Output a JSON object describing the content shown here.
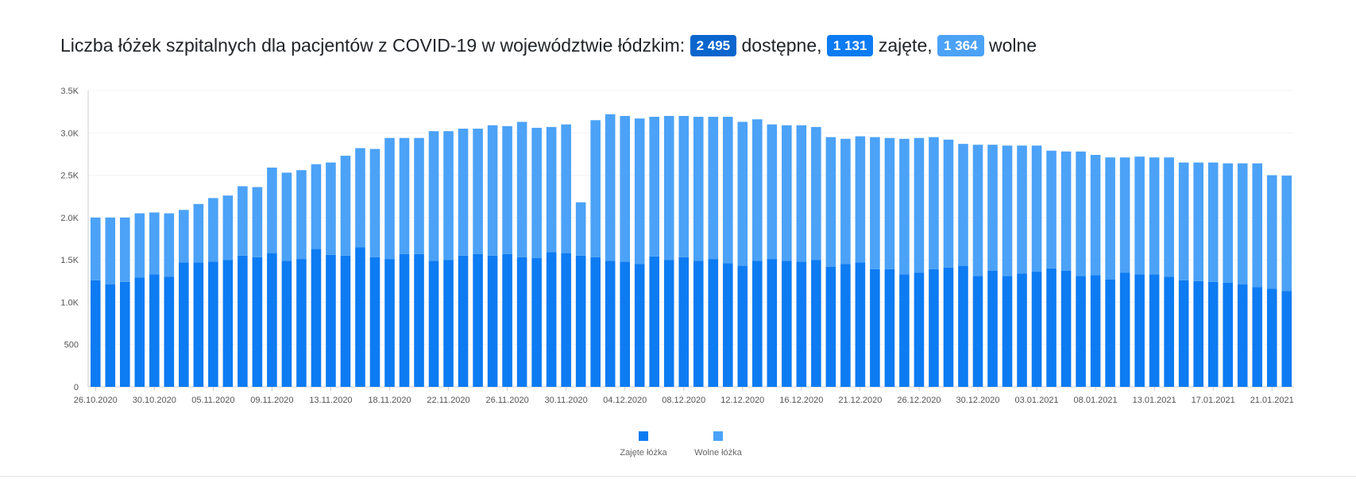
{
  "header": {
    "title_prefix": "Liczba łóżek szpitalnych dla pacjentów z COVID-19 w województwie łódzkim:",
    "available_value": "2 495",
    "available_label": "dostępne,",
    "occupied_value": "1 131",
    "occupied_label": "zajęte,",
    "free_value": "1 364",
    "free_label": "wolne"
  },
  "colors": {
    "occupied": "#0d7bf2",
    "free": "#4ba2f7",
    "badge_available": "#0a66cc",
    "badge_occupied": "#0d7bf2",
    "badge_free": "#4ba2f7"
  },
  "chart_data": {
    "type": "bar",
    "stacked": true,
    "title": "",
    "xlabel": "",
    "ylabel": "",
    "ylim": [
      0,
      3500
    ],
    "y_ticks": [
      0,
      500,
      1000,
      1500,
      2000,
      2500,
      3000,
      3500
    ],
    "y_tick_labels": [
      "0",
      "500",
      "1.0K",
      "1.5K",
      "2.0K",
      "2.5K",
      "3.0K",
      "3.5K"
    ],
    "grid": true,
    "legend_position": "bottom-center",
    "x_tick_labels": [
      {
        "index": 0,
        "label": "26.10.2020"
      },
      {
        "index": 4,
        "label": "30.10.2020"
      },
      {
        "index": 8,
        "label": "05.11.2020"
      },
      {
        "index": 12,
        "label": "09.11.2020"
      },
      {
        "index": 16,
        "label": "13.11.2020"
      },
      {
        "index": 20,
        "label": "18.11.2020"
      },
      {
        "index": 24,
        "label": "22.11.2020"
      },
      {
        "index": 28,
        "label": "26.11.2020"
      },
      {
        "index": 32,
        "label": "30.11.2020"
      },
      {
        "index": 36,
        "label": "04.12.2020"
      },
      {
        "index": 40,
        "label": "08.12.2020"
      },
      {
        "index": 44,
        "label": "12.12.2020"
      },
      {
        "index": 48,
        "label": "16.12.2020"
      },
      {
        "index": 52,
        "label": "21.12.2020"
      },
      {
        "index": 56,
        "label": "26.12.2020"
      },
      {
        "index": 60,
        "label": "30.12.2020"
      },
      {
        "index": 64,
        "label": "03.01.2021"
      },
      {
        "index": 68,
        "label": "08.01.2021"
      },
      {
        "index": 72,
        "label": "13.01.2021"
      },
      {
        "index": 76,
        "label": "17.01.2021"
      },
      {
        "index": 80,
        "label": "21.01.2021"
      }
    ],
    "series": [
      {
        "name": "Zajęte łóżka",
        "color": "#0d7bf2",
        "values": [
          1260,
          1210,
          1240,
          1290,
          1330,
          1300,
          1470,
          1470,
          1480,
          1500,
          1550,
          1530,
          1580,
          1490,
          1510,
          1630,
          1560,
          1550,
          1650,
          1530,
          1510,
          1570,
          1570,
          1490,
          1500,
          1550,
          1570,
          1550,
          1570,
          1530,
          1520,
          1590,
          1580,
          1550,
          1530,
          1490,
          1480,
          1450,
          1540,
          1500,
          1530,
          1490,
          1510,
          1460,
          1430,
          1490,
          1510,
          1490,
          1480,
          1500,
          1420,
          1450,
          1470,
          1390,
          1390,
          1330,
          1350,
          1390,
          1410,
          1430,
          1310,
          1370,
          1310,
          1340,
          1360,
          1400,
          1370,
          1310,
          1320,
          1270,
          1350,
          1330,
          1330,
          1300,
          1260,
          1250,
          1240,
          1230,
          1210,
          1180,
          1160,
          1131
        ]
      },
      {
        "name": "Wolne łóżka",
        "color": "#4ba2f7",
        "values": [
          740,
          790,
          760,
          760,
          730,
          750,
          620,
          690,
          750,
          760,
          820,
          830,
          1010,
          1040,
          1050,
          1000,
          1090,
          1180,
          1170,
          1280,
          1430,
          1370,
          1370,
          1530,
          1520,
          1500,
          1480,
          1540,
          1510,
          1600,
          1540,
          1480,
          1520,
          630,
          1620,
          1730,
          1720,
          1720,
          1650,
          1700,
          1670,
          1700,
          1680,
          1730,
          1700,
          1670,
          1590,
          1600,
          1610,
          1570,
          1530,
          1480,
          1490,
          1560,
          1550,
          1600,
          1590,
          1560,
          1510,
          1440,
          1550,
          1490,
          1540,
          1510,
          1490,
          1390,
          1410,
          1470,
          1420,
          1440,
          1360,
          1390,
          1380,
          1410,
          1390,
          1400,
          1410,
          1410,
          1430,
          1460,
          1340,
          1364
        ]
      }
    ]
  },
  "legend": {
    "items": [
      {
        "label": "Zajęte łóżka",
        "color": "#0d7bf2"
      },
      {
        "label": "Wolne łóżka",
        "color": "#4ba2f7"
      }
    ]
  }
}
